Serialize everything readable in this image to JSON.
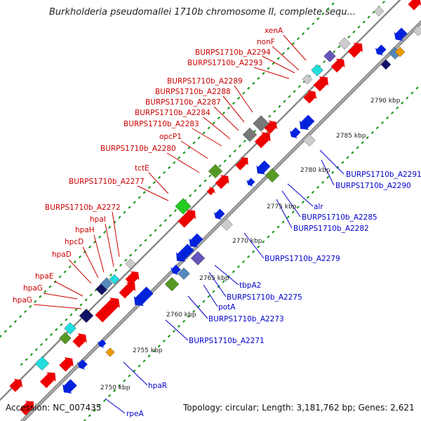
{
  "title": "Burkholderia pseudomallei 1710b chromosome II, complete sequ...",
  "footer": {
    "accession": "Accession: NC_007435",
    "info": "Topology: circular; Length: 3,181,762 bp; Genes: 2,621"
  },
  "colors": {
    "red": "#ee0000",
    "blue": "#0022dd",
    "darkgreen": "#559922",
    "lightgreen": "#22cc22",
    "navy": "#111166",
    "cyan": "#22dddd",
    "gray": "#777777",
    "lightgray": "#cccccc",
    "purple": "#6655bb",
    "steelblue": "#5588bb",
    "orange": "#ee9900",
    "red_label": "#cc0000",
    "blue_label": "#0000cc"
  },
  "kbp_marks": [
    "2750 kbp",
    "2755 kbp",
    "2760 kbp",
    "2765 kbp",
    "2770 kbp",
    "2775 kbp",
    "2780 kbp",
    "2785 kbp",
    "2790 kbp"
  ],
  "red_labels": [
    "xenA",
    "nonF",
    "BURPS1710b_A2294",
    "BURPS1710b_A2293",
    "BURPS1710b_A2289",
    "BURPS1710b_A2288",
    "BURPS1710b_A2287",
    "BURPS1710b_A2284",
    "BURPS1710b_A2283",
    "opcP1",
    "BURPS1710b_A2280",
    "tctE",
    "BURPS1710b_A2277",
    "BURPS1710b_A2272",
    "hpaI",
    "hpaH",
    "hpcD",
    "hpaD",
    "hpaE",
    "hpaG",
    "hpaG"
  ],
  "blue_labels": [
    "BURPS1710b_A2291",
    "BURPS1710b_A2290",
    "alr",
    "BURPS1710b_A2285",
    "BURPS1710b_A2282",
    "BURPS1710b_A2279",
    "tbpA2",
    "BURPS1710b_A2275",
    "potA",
    "BURPS1710b_A2273",
    "BURPS1710b_A2271",
    "hpaR",
    "rpeA"
  ]
}
